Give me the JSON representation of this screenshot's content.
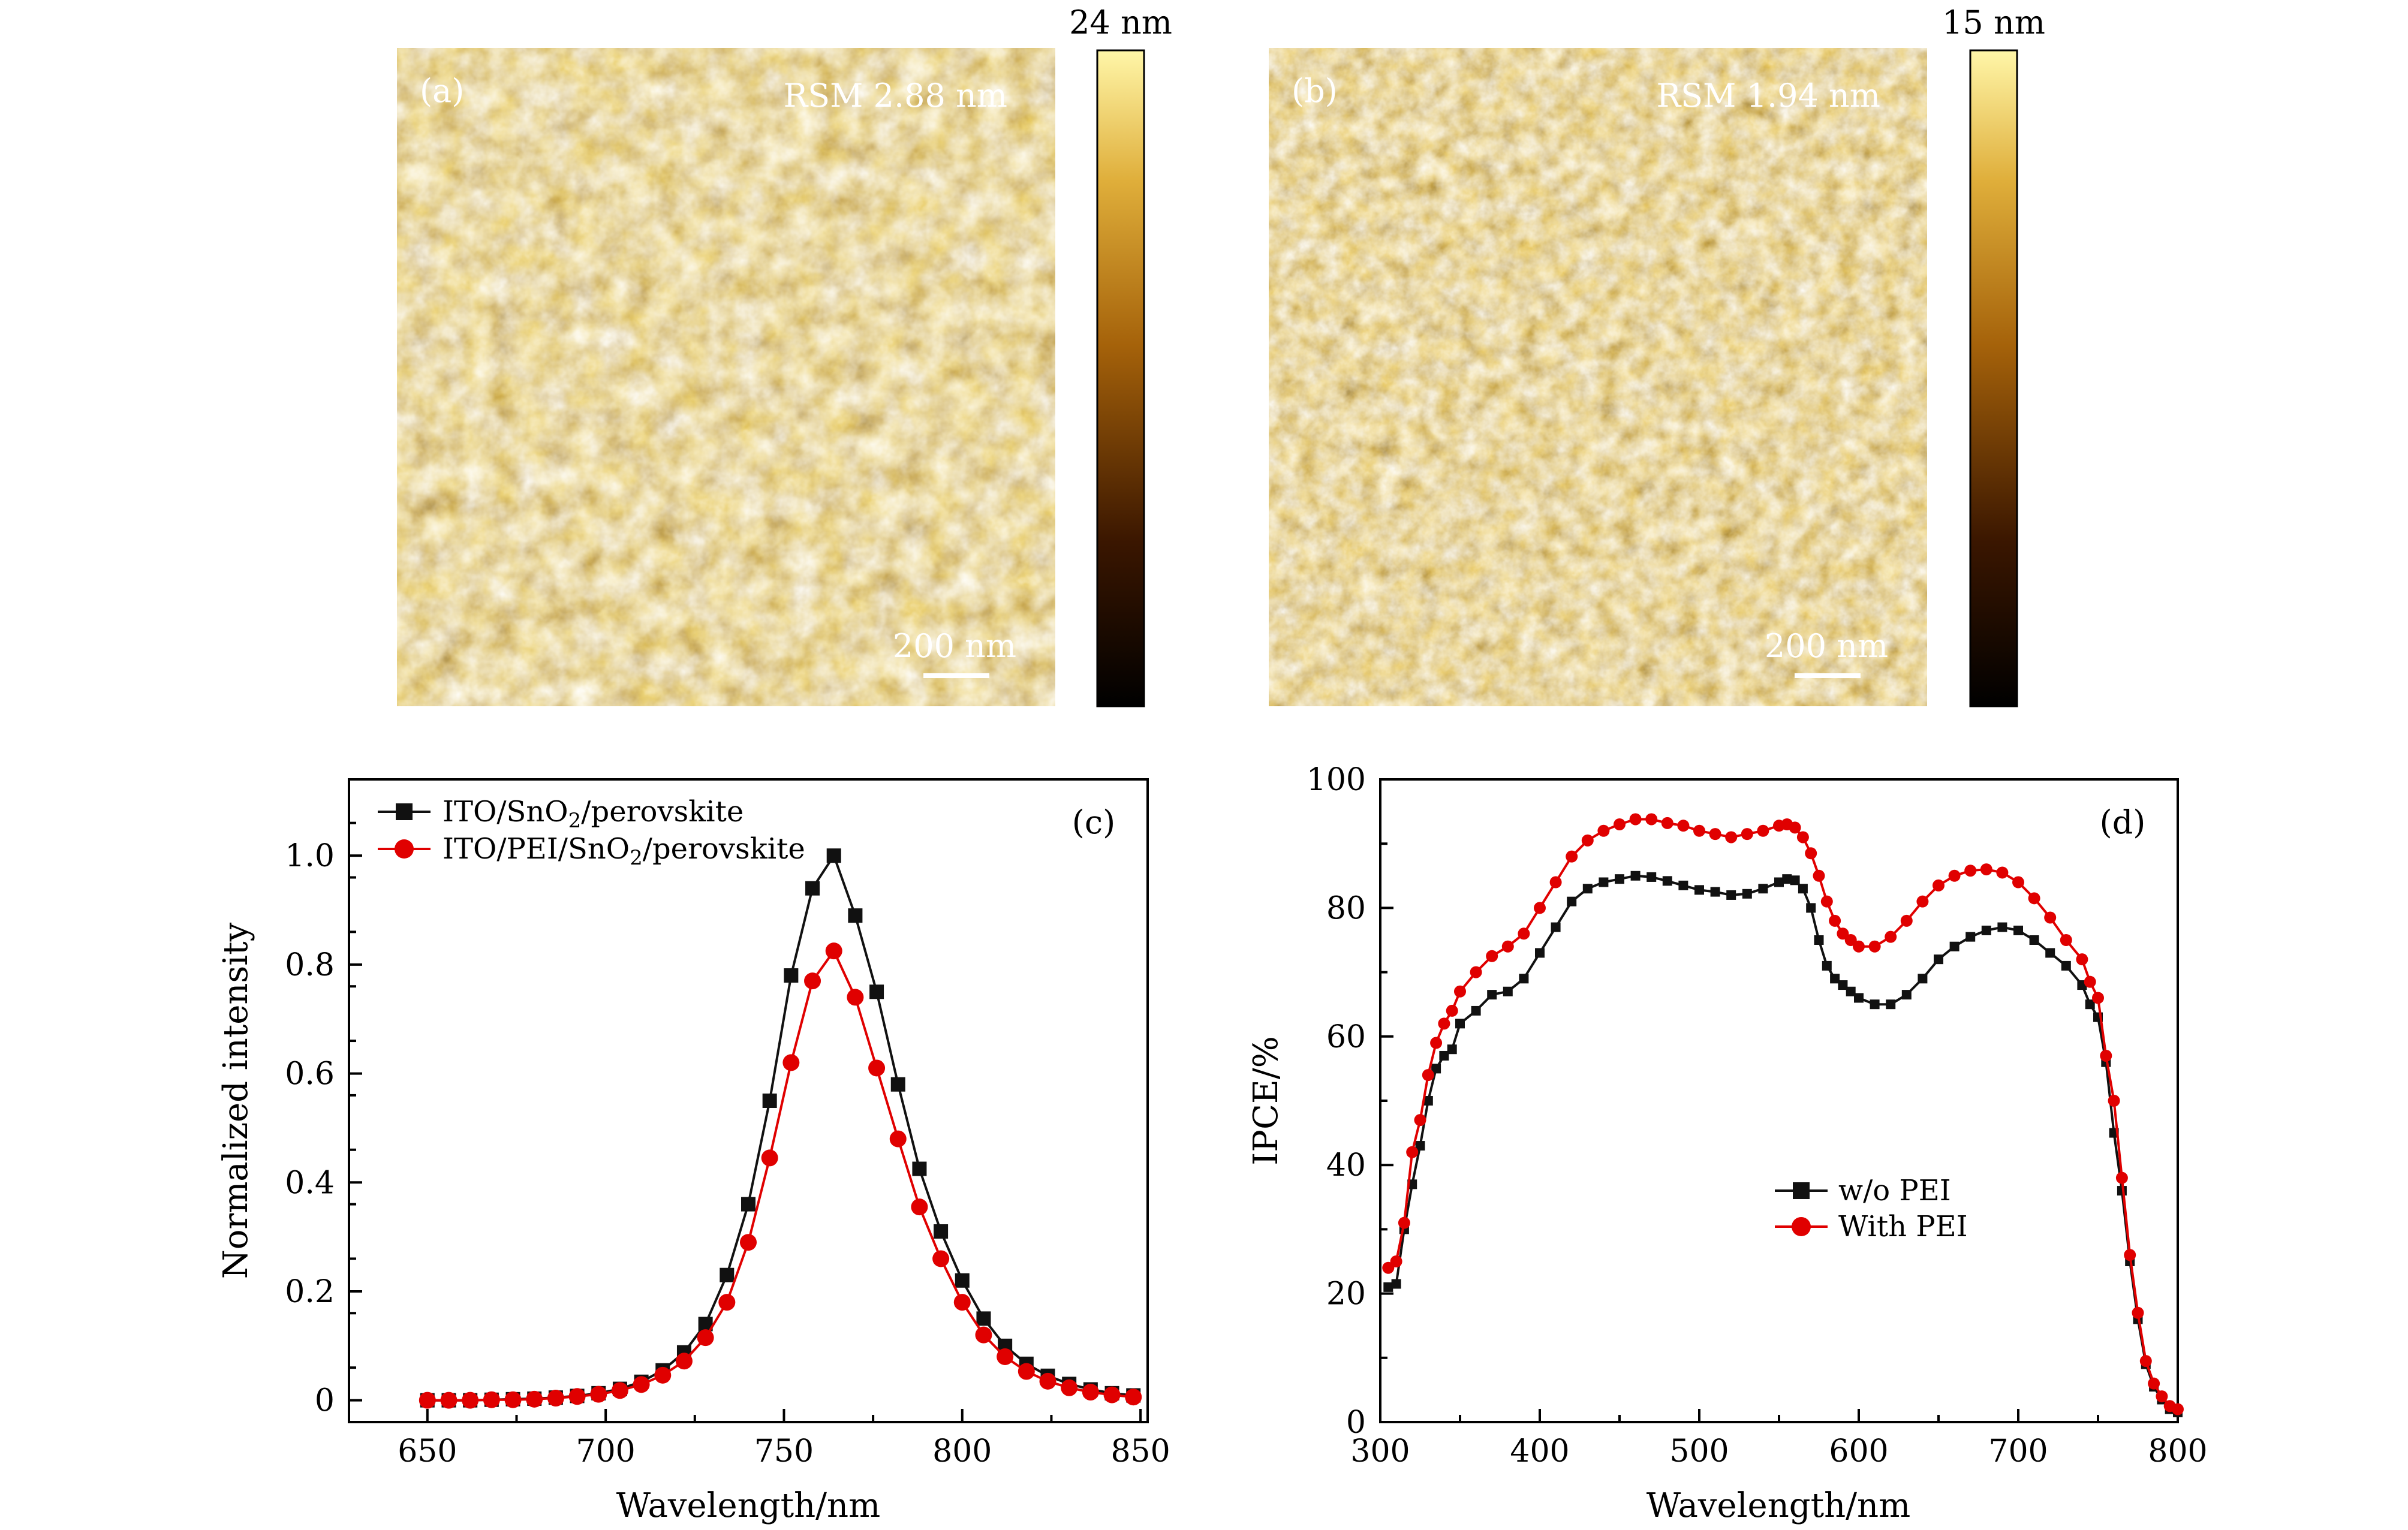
{
  "afm_images": [
    {
      "panel_label": "(a)",
      "roughness_label": "RSM 2.88 nm",
      "scale_bar_label": "200 nm",
      "colorbar_max_label": "24 nm"
    },
    {
      "panel_label": "(b)",
      "roughness_label": "RSM 1.94 nm",
      "scale_bar_label": "200 nm",
      "colorbar_max_label": "15 nm"
    }
  ],
  "colors": {
    "black_series": "#111111",
    "red_series": "#e00000",
    "afm_dark": "#3a1a00",
    "afm_mid": "#b5700d",
    "afm_light": "#f3dc7a"
  },
  "chart_data": [
    {
      "type": "line",
      "panel_label": "(c)",
      "xlabel": "Wavelength/nm",
      "ylabel": "Normalized intensity",
      "xlim": [
        628,
        852
      ],
      "ylim": [
        -0.04,
        1.14
      ],
      "xticks": [
        650,
        700,
        750,
        800,
        850
      ],
      "yticks": [
        0,
        0.2,
        0.4,
        0.6,
        0.8,
        1.0
      ],
      "ytick_labels": [
        "0",
        "0.2",
        "0.4",
        "0.6",
        "0.8",
        "1.0"
      ],
      "legend_position": "top-left",
      "x": [
        650,
        656,
        662,
        668,
        674,
        680,
        686,
        692,
        698,
        704,
        710,
        716,
        722,
        728,
        734,
        740,
        746,
        752,
        758,
        764,
        770,
        776,
        782,
        788,
        794,
        800,
        806,
        812,
        818,
        824,
        830,
        836,
        842,
        848
      ],
      "series": [
        {
          "name": "ITO/SnO2/perovskite",
          "legend_base": "ITO/SnO",
          "legend_sub": "2",
          "legend_tail": "/perovskite",
          "color": "#111111",
          "marker": "square",
          "values": [
            0,
            0,
            0,
            0.001,
            0.002,
            0.003,
            0.005,
            0.008,
            0.013,
            0.021,
            0.034,
            0.055,
            0.088,
            0.14,
            0.23,
            0.36,
            0.55,
            0.78,
            0.94,
            1.0,
            0.89,
            0.75,
            0.58,
            0.425,
            0.31,
            0.22,
            0.15,
            0.1,
            0.067,
            0.045,
            0.03,
            0.02,
            0.013,
            0.009
          ]
        },
        {
          "name": "ITO/PEI/SnO2/perovskite",
          "legend_base": "ITO/PEI/SnO",
          "legend_sub": "2",
          "legend_tail": "/perovskite",
          "color": "#e00000",
          "marker": "circle",
          "values": [
            0,
            0,
            0,
            0.001,
            0.001,
            0.002,
            0.004,
            0.007,
            0.011,
            0.018,
            0.029,
            0.046,
            0.072,
            0.115,
            0.18,
            0.29,
            0.445,
            0.62,
            0.77,
            0.825,
            0.74,
            0.61,
            0.48,
            0.355,
            0.26,
            0.18,
            0.12,
            0.08,
            0.053,
            0.035,
            0.023,
            0.015,
            0.01,
            0.006
          ]
        }
      ]
    },
    {
      "type": "line",
      "panel_label": "(d)",
      "xlabel": "Wavelength/nm",
      "ylabel": "IPCE/%",
      "xlim": [
        300,
        800
      ],
      "ylim": [
        0,
        100
      ],
      "xticks": [
        300,
        400,
        500,
        600,
        700,
        800
      ],
      "yticks": [
        0,
        20,
        40,
        60,
        80,
        100
      ],
      "legend_position": "center-right",
      "x": [
        305,
        310,
        315,
        320,
        325,
        330,
        335,
        340,
        345,
        350,
        360,
        370,
        380,
        390,
        400,
        410,
        420,
        430,
        440,
        450,
        460,
        470,
        480,
        490,
        500,
        510,
        520,
        530,
        540,
        550,
        555,
        560,
        565,
        570,
        575,
        580,
        585,
        590,
        595,
        600,
        610,
        620,
        630,
        640,
        650,
        660,
        670,
        680,
        690,
        700,
        710,
        720,
        730,
        740,
        745,
        750,
        755,
        760,
        765,
        770,
        775,
        780,
        785,
        790,
        795,
        800
      ],
      "series": [
        {
          "name": "w/o PEI",
          "color": "#111111",
          "marker": "square",
          "values": [
            21,
            21.5,
            30,
            37,
            43,
            50,
            55,
            57,
            58,
            62,
            64,
            66.5,
            67,
            69,
            73,
            77,
            81,
            83,
            84,
            84.5,
            85,
            84.8,
            84.2,
            83.5,
            82.8,
            82.5,
            82,
            82.2,
            83,
            84,
            84.5,
            84.3,
            83,
            80,
            75,
            71,
            69,
            68,
            67,
            66,
            65,
            65,
            66.5,
            69,
            72,
            74,
            75.5,
            76.5,
            77,
            76.5,
            75,
            73,
            71,
            68,
            65,
            63,
            56,
            45,
            36,
            25,
            16,
            9,
            5.5,
            3.5,
            2,
            1.5
          ]
        },
        {
          "name": "With PEI",
          "color": "#e00000",
          "marker": "circle",
          "values": [
            24,
            25,
            31,
            42,
            47,
            54,
            59,
            62,
            64,
            67,
            70,
            72.5,
            74,
            76,
            80,
            84,
            88,
            90.5,
            92,
            93,
            93.8,
            93.8,
            93.2,
            92.8,
            92,
            91.5,
            91,
            91.5,
            92,
            92.8,
            93,
            92.5,
            91,
            88.5,
            85,
            81,
            78,
            76,
            75,
            74,
            74,
            75.5,
            78,
            81,
            83.5,
            85,
            85.8,
            86,
            85.5,
            84,
            81.5,
            78.5,
            75,
            72,
            68.5,
            66,
            57,
            50,
            38,
            26,
            17,
            9.5,
            6,
            4,
            2.5,
            2
          ]
        }
      ]
    }
  ]
}
